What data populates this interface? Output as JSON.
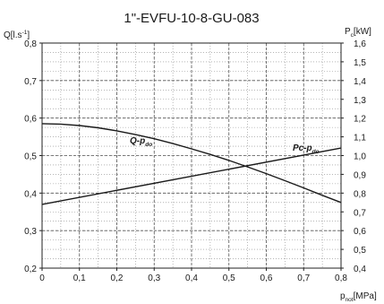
{
  "chart_data": {
    "type": "line",
    "title": "1\"-EVFU-10-8-GU-083",
    "xlabel": {
      "main": "p",
      "sub": "not",
      "unit": "[MPa]"
    },
    "ylabel_left": {
      "text": "Q[l.s",
      "sup": "-1",
      "close": "]"
    },
    "ylabel_right": {
      "main": "P",
      "sub": "c",
      "unit": "[kW]"
    },
    "xlim": [
      0,
      0.8
    ],
    "ylim_left": [
      0.2,
      0.8
    ],
    "ylim_right": [
      0.4,
      1.6
    ],
    "grid": true,
    "x_ticks": [
      "0",
      "0,1",
      "0,2",
      "0,3",
      "0,4",
      "0,5",
      "0,6",
      "0,7",
      "0,8"
    ],
    "left_ticks": [
      "0,2",
      "0,3",
      "0,4",
      "0,5",
      "0,6",
      "0,7",
      "0,8"
    ],
    "right_ticks": [
      "0,4",
      "0,5",
      "0,6",
      "0,7",
      "0,8",
      "0,9",
      "1,0",
      "1,1",
      "1,2",
      "1,3",
      "1,4",
      "1,5",
      "1,6"
    ],
    "series": [
      {
        "name": "Q-p",
        "name_sub": "do",
        "axis": "left",
        "x": [
          0,
          0.05,
          0.1,
          0.15,
          0.2,
          0.25,
          0.3,
          0.35,
          0.4,
          0.45,
          0.5,
          0.55,
          0.6,
          0.65,
          0.7,
          0.75,
          0.8
        ],
        "y": [
          0.585,
          0.584,
          0.58,
          0.574,
          0.566,
          0.556,
          0.545,
          0.532,
          0.518,
          0.503,
          0.487,
          0.47,
          0.452,
          0.433,
          0.414,
          0.394,
          0.375
        ]
      },
      {
        "name": "Pc-p",
        "name_sub": "do",
        "axis": "right",
        "x": [
          0,
          0.8
        ],
        "y": [
          0.74,
          1.04
        ]
      }
    ],
    "plot_color": "#1a1a1a",
    "grid_color": "#8a8a8a"
  }
}
